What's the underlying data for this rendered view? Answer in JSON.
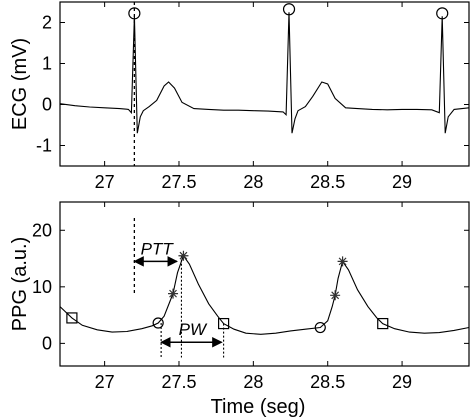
{
  "chart_data": [
    {
      "type": "line",
      "ylabel": "ECG (mV)",
      "xlabel": "",
      "xlim": [
        26.7,
        29.45
      ],
      "ylim": [
        -1.5,
        2.5
      ],
      "xticks": [
        27,
        27.5,
        28,
        28.5,
        29
      ],
      "xtick_labels": [
        "27",
        "27.5",
        "28",
        "28.5",
        "29"
      ],
      "yticks": [
        -1,
        0,
        1,
        2
      ],
      "ytick_labels": [
        "-1",
        "0",
        "1",
        "2"
      ],
      "grid": false,
      "r_peaks": [
        {
          "x": 27.2,
          "y": 2.15
        },
        {
          "x": 28.24,
          "y": 2.25
        },
        {
          "x": 29.27,
          "y": 2.15
        }
      ],
      "reference_line_x": 27.2,
      "series": [
        {
          "values": [
            [
              26.7,
              0.02
            ],
            [
              26.8,
              -0.03
            ],
            [
              26.9,
              -0.06
            ],
            [
              27.0,
              -0.08
            ],
            [
              27.1,
              -0.1
            ],
            [
              27.16,
              -0.12
            ],
            [
              27.18,
              -0.2
            ],
            [
              27.2,
              2.15
            ],
            [
              27.22,
              -0.7
            ],
            [
              27.24,
              -0.3
            ],
            [
              27.26,
              -0.15
            ],
            [
              27.3,
              -0.05
            ],
            [
              27.35,
              0.1
            ],
            [
              27.4,
              0.45
            ],
            [
              27.43,
              0.55
            ],
            [
              27.47,
              0.4
            ],
            [
              27.52,
              0.05
            ],
            [
              27.6,
              -0.1
            ],
            [
              27.7,
              -0.12
            ],
            [
              27.8,
              -0.14
            ],
            [
              27.9,
              -0.14
            ],
            [
              28.0,
              -0.15
            ],
            [
              28.1,
              -0.16
            ],
            [
              28.2,
              -0.18
            ],
            [
              28.22,
              -0.25
            ],
            [
              28.24,
              2.25
            ],
            [
              28.26,
              -0.7
            ],
            [
              28.28,
              -0.35
            ],
            [
              28.3,
              -0.15
            ],
            [
              28.35,
              -0.05
            ],
            [
              28.4,
              0.2
            ],
            [
              28.46,
              0.55
            ],
            [
              28.5,
              0.5
            ],
            [
              28.55,
              0.15
            ],
            [
              28.62,
              -0.08
            ],
            [
              28.7,
              -0.1
            ],
            [
              28.8,
              -0.12
            ],
            [
              28.9,
              -0.13
            ],
            [
              29.0,
              -0.12
            ],
            [
              29.1,
              -0.12
            ],
            [
              29.2,
              -0.13
            ],
            [
              29.25,
              -0.2
            ],
            [
              29.27,
              2.15
            ],
            [
              29.29,
              -0.7
            ],
            [
              29.31,
              -0.3
            ],
            [
              29.35,
              -0.12
            ],
            [
              29.45,
              -0.08
            ]
          ]
        }
      ]
    },
    {
      "type": "line",
      "ylabel": "PPG (a.u.)",
      "xlabel": "Time (seg)",
      "xlim": [
        26.7,
        29.45
      ],
      "ylim": [
        -4,
        25
      ],
      "xticks": [
        27,
        27.5,
        28,
        28.5,
        29
      ],
      "xtick_labels": [
        "27",
        "27.5",
        "28",
        "28.5",
        "29"
      ],
      "yticks": [
        0,
        10,
        20
      ],
      "ytick_labels": [
        "0",
        "10",
        "20"
      ],
      "grid": false,
      "annotations": [
        {
          "text": "PTT",
          "x_start": 27.2,
          "x_end": 27.5,
          "y": 14.5
        },
        {
          "text": "PW",
          "x_start": 27.38,
          "x_end": 27.8,
          "y": 0.2
        }
      ],
      "markers": {
        "squares": [
          {
            "x": 26.78,
            "y": 4.5
          },
          {
            "x": 27.8,
            "y": 3.5
          },
          {
            "x": 28.87,
            "y": 3.5
          }
        ],
        "circles": [
          {
            "x": 27.36,
            "y": 3.6
          },
          {
            "x": 28.45,
            "y": 2.8
          }
        ],
        "stars": [
          {
            "x": 27.46,
            "y": 8.8
          },
          {
            "x": 27.53,
            "y": 15.5
          },
          {
            "x": 28.55,
            "y": 8.5
          },
          {
            "x": 28.6,
            "y": 14.5
          }
        ]
      },
      "series": [
        {
          "values": [
            [
              26.7,
              6.5
            ],
            [
              26.78,
              4.5
            ],
            [
              26.85,
              3.2
            ],
            [
              26.95,
              2.4
            ],
            [
              27.05,
              2.0
            ],
            [
              27.15,
              2.1
            ],
            [
              27.25,
              2.6
            ],
            [
              27.32,
              3.1
            ],
            [
              27.36,
              3.6
            ],
            [
              27.4,
              4.8
            ],
            [
              27.44,
              7.5
            ],
            [
              27.46,
              8.8
            ],
            [
              27.49,
              12.5
            ],
            [
              27.53,
              15.5
            ],
            [
              27.57,
              14.0
            ],
            [
              27.63,
              10.5
            ],
            [
              27.7,
              7.0
            ],
            [
              27.76,
              4.8
            ],
            [
              27.8,
              3.5
            ],
            [
              27.87,
              2.5
            ],
            [
              27.95,
              1.8
            ],
            [
              28.05,
              1.6
            ],
            [
              28.15,
              1.8
            ],
            [
              28.25,
              2.2
            ],
            [
              28.35,
              2.5
            ],
            [
              28.45,
              2.8
            ],
            [
              28.5,
              4.0
            ],
            [
              28.53,
              6.5
            ],
            [
              28.55,
              8.5
            ],
            [
              28.57,
              11.5
            ],
            [
              28.6,
              14.5
            ],
            [
              28.64,
              13.0
            ],
            [
              28.7,
              9.5
            ],
            [
              28.77,
              6.5
            ],
            [
              28.83,
              4.5
            ],
            [
              28.87,
              3.5
            ],
            [
              28.95,
              2.6
            ],
            [
              29.05,
              2.0
            ],
            [
              29.15,
              1.8
            ],
            [
              29.25,
              1.9
            ],
            [
              29.35,
              2.3
            ],
            [
              29.45,
              2.8
            ]
          ]
        }
      ]
    }
  ]
}
